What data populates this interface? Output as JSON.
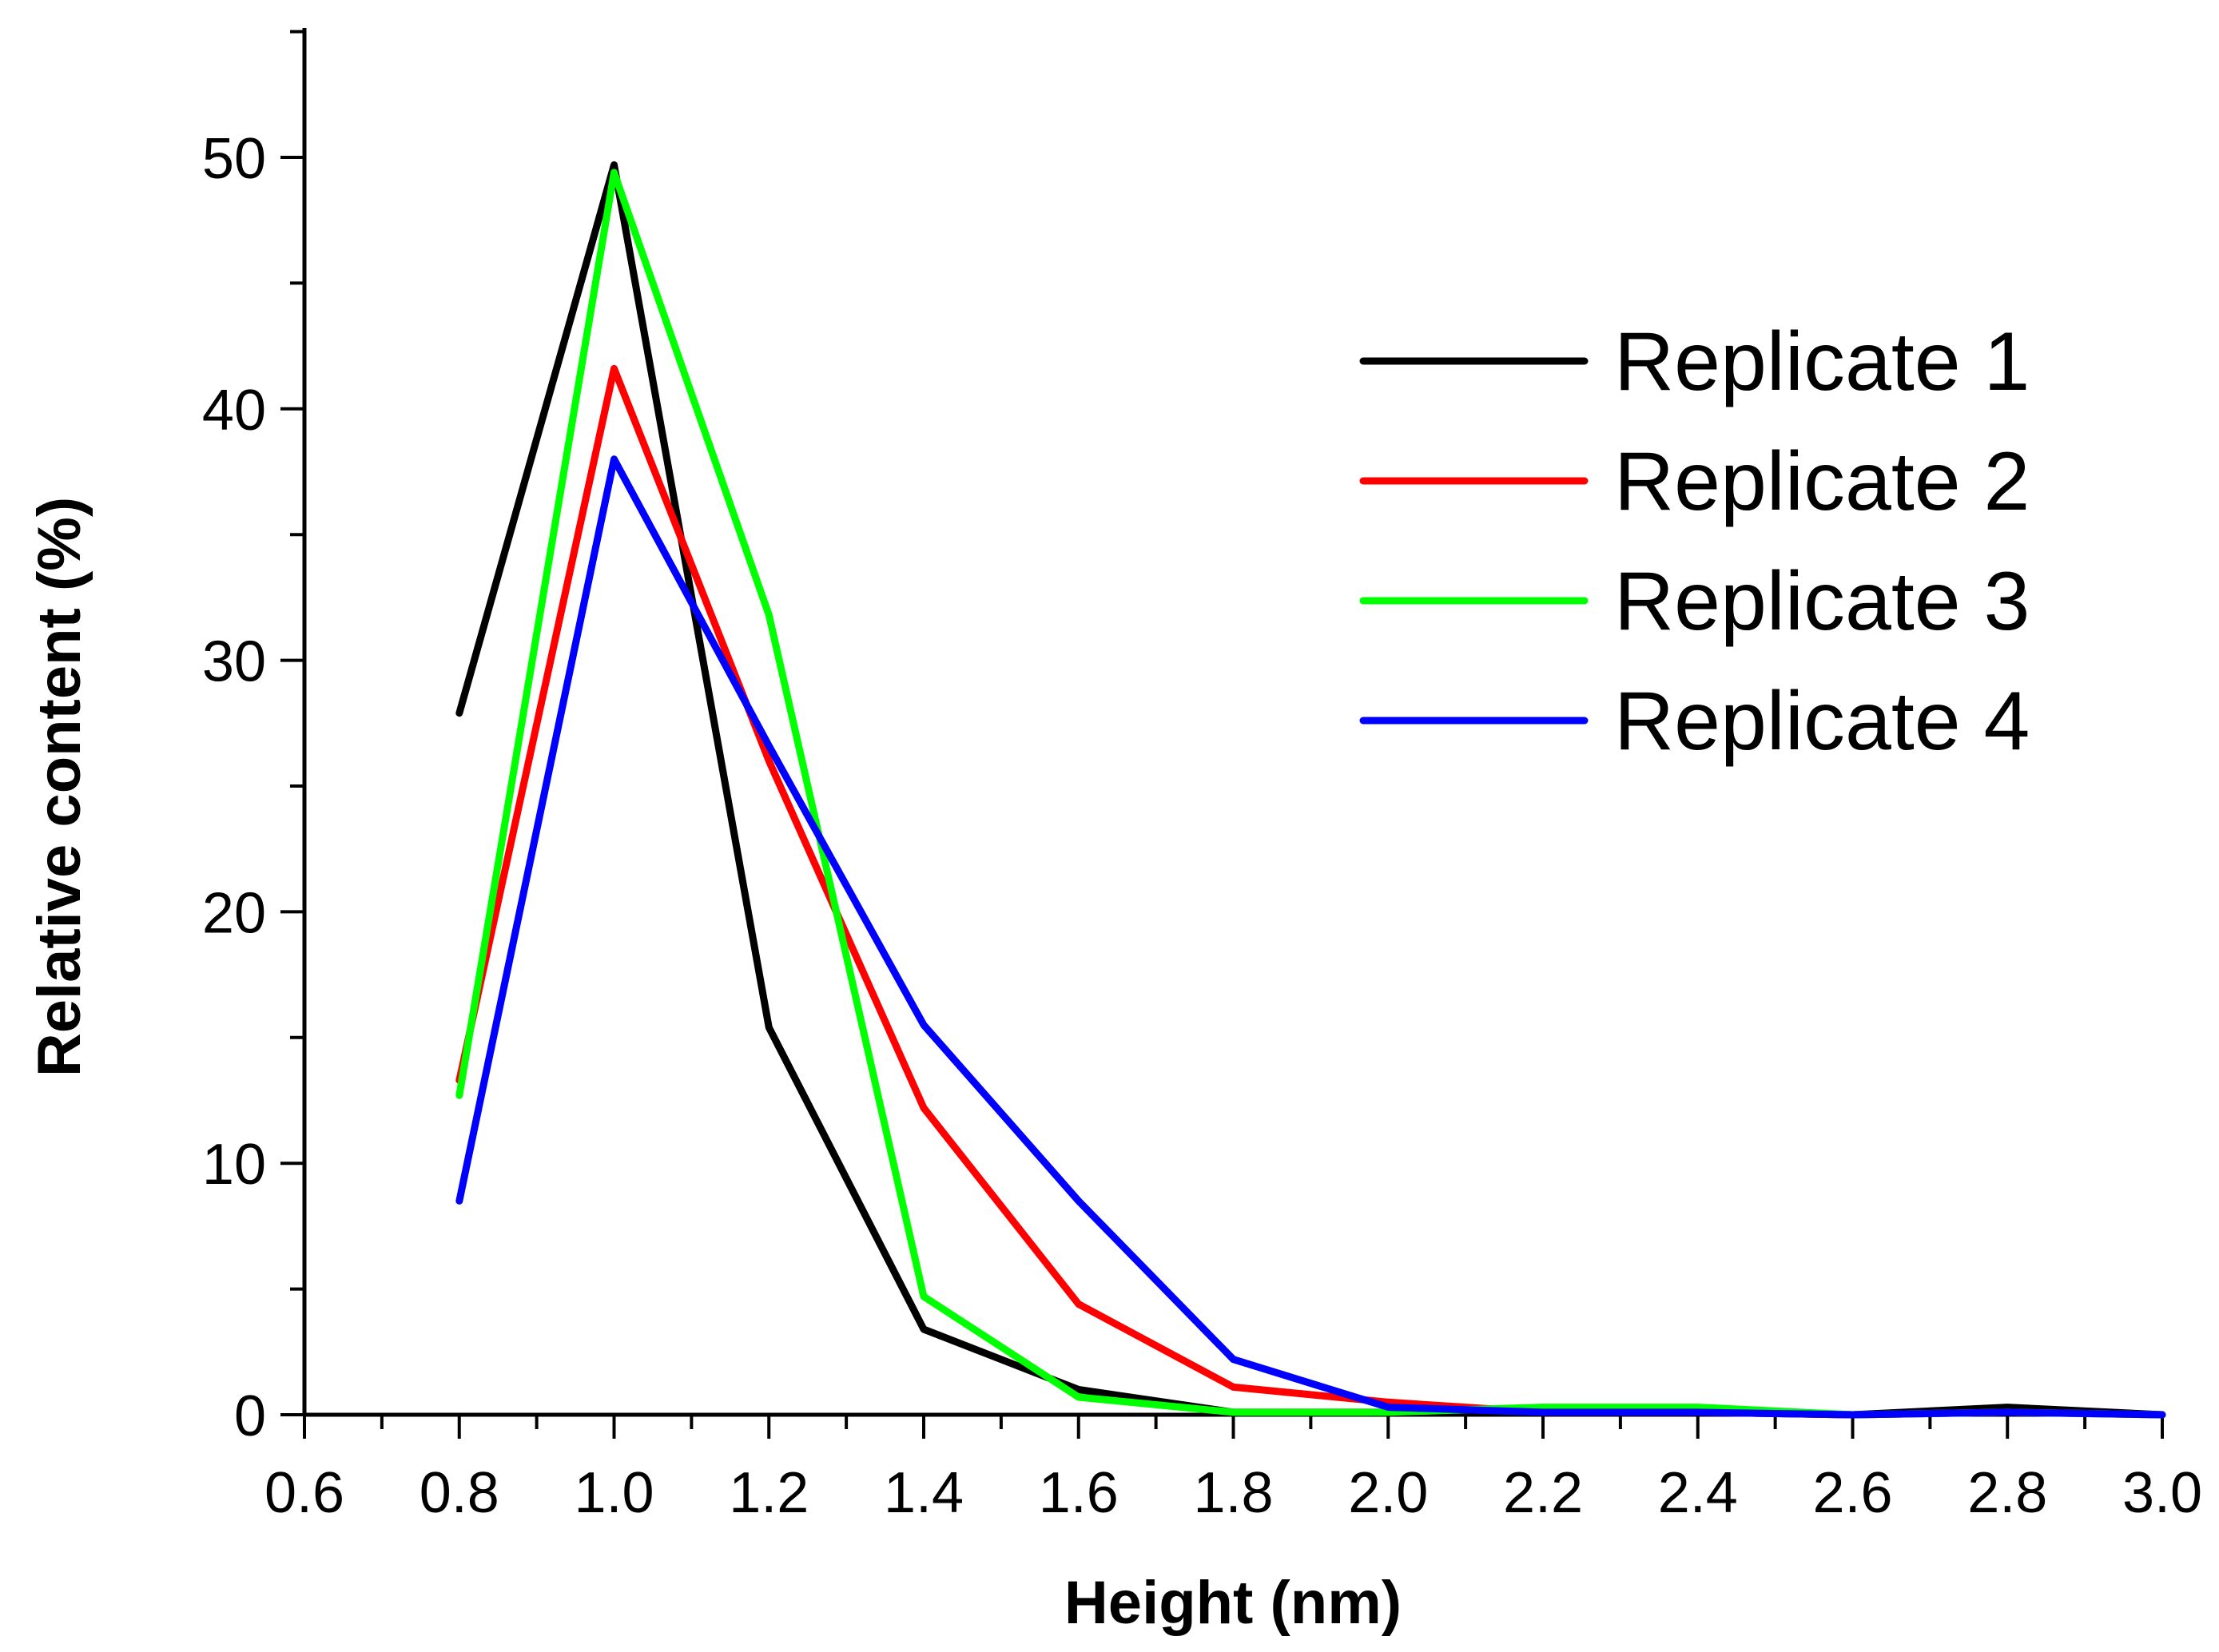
{
  "chart_data": {
    "type": "line",
    "title": "",
    "xlabel": "Height (nm)",
    "ylabel": "Relative content (%)",
    "xlim": [
      0.6,
      3.0
    ],
    "ylim": [
      0,
      55
    ],
    "xticks": [
      0.6,
      0.8,
      1.0,
      1.2,
      1.4,
      1.6,
      1.8,
      2.0,
      2.2,
      2.4,
      2.6,
      2.8,
      3.0
    ],
    "xtick_labels": [
      "0.6",
      "0.8",
      "1.0",
      "1.2",
      "1.4",
      "1.6",
      "1.8",
      "2.0",
      "2.2",
      "2.4",
      "2.6",
      "2.8",
      "3.0"
    ],
    "yticks": [
      0,
      10,
      20,
      30,
      40,
      50
    ],
    "ytick_labels": [
      "0",
      "10",
      "20",
      "30",
      "40",
      "50"
    ],
    "grid": false,
    "legend_position": "top-right",
    "x": [
      0.8,
      1.0,
      1.2,
      1.4,
      1.6,
      1.8,
      2.0,
      2.2,
      2.4,
      2.6,
      2.8,
      3.0
    ],
    "series": [
      {
        "name": "Replicate 1",
        "color": "#000000",
        "values": [
          27.9,
          49.7,
          15.4,
          3.4,
          1.0,
          0.1,
          0.1,
          0.1,
          0.1,
          0.0,
          0.3,
          0.0
        ]
      },
      {
        "name": "Replicate 2",
        "color": "#ff0000",
        "values": [
          13.3,
          41.6,
          26.0,
          12.2,
          4.4,
          1.1,
          0.5,
          0.1,
          0.1,
          0.0,
          0.1,
          0.0
        ]
      },
      {
        "name": "Replicate 3",
        "color": "#00ff00",
        "values": [
          12.7,
          49.4,
          31.8,
          4.7,
          0.7,
          0.1,
          0.1,
          0.3,
          0.3,
          0.0,
          0.1,
          0.0
        ]
      },
      {
        "name": "Replicate 4",
        "color": "#0000ff",
        "values": [
          8.5,
          38.0,
          26.6,
          15.5,
          8.5,
          2.2,
          0.3,
          0.1,
          0.1,
          0.0,
          0.1,
          0.0
        ]
      }
    ]
  }
}
